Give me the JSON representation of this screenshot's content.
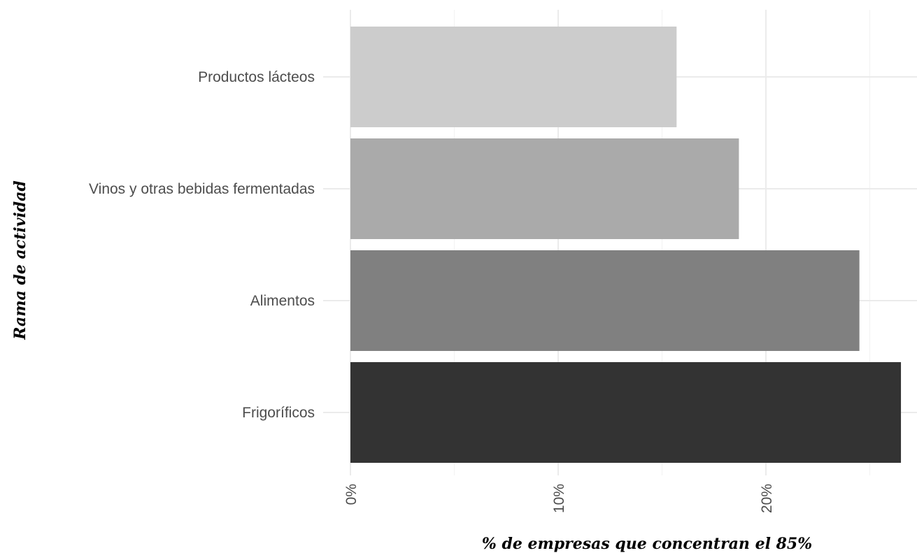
{
  "chart_data": {
    "type": "bar",
    "orientation": "horizontal",
    "categories": [
      "Productos lácteos",
      "Vinos y otras bebidas fermentadas",
      "Alimentos",
      "Frigoríficos"
    ],
    "values": [
      15.7,
      18.7,
      24.5,
      26.5
    ],
    "colors": [
      "#cccccc",
      "#aaaaaa",
      "#808080",
      "#333333"
    ],
    "xlabel": "% de empresas que concentran el 85%",
    "ylabel": "Rama de actividad",
    "xlim": [
      0,
      27.5
    ],
    "x_ticks": [
      0,
      10,
      20
    ],
    "x_tick_labels": [
      "0%",
      "10%",
      "20%"
    ],
    "x_minor_ticks": [
      5,
      15,
      25
    ],
    "grid": true,
    "legend": "none"
  }
}
